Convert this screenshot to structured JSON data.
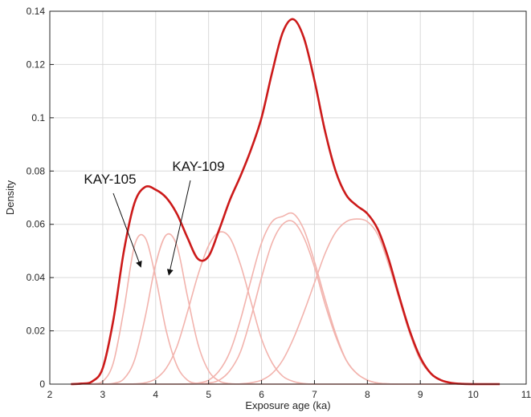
{
  "chart_data": {
    "type": "line",
    "title": "",
    "xlabel": "Exposure age (ka)",
    "ylabel": "Density",
    "xlim": [
      2,
      11
    ],
    "ylim": [
      0,
      0.14
    ],
    "xticks": [
      "2",
      "3",
      "4",
      "5",
      "6",
      "7",
      "8",
      "9",
      "10",
      "11"
    ],
    "yticks": [
      "0",
      "0.02",
      "0.04",
      "0.06",
      "0.08",
      "0.1",
      "0.12",
      "0.14"
    ],
    "grid": true,
    "colors": {
      "summary": "#cc1a1a",
      "individual": "#f2b3ad",
      "axis": "#262626",
      "grid": "#d9d9d9"
    },
    "x": [
      2.4,
      2.6,
      2.8,
      3.0,
      3.2,
      3.4,
      3.6,
      3.8,
      4.0,
      4.2,
      4.4,
      4.6,
      4.8,
      5.0,
      5.2,
      5.4,
      5.6,
      5.8,
      6.0,
      6.2,
      6.4,
      6.6,
      6.8,
      7.0,
      7.2,
      7.4,
      7.6,
      7.8,
      8.0,
      8.2,
      8.4,
      8.6,
      8.8,
      9.0,
      9.2,
      9.4,
      9.6,
      9.8,
      10.0,
      10.2,
      10.5
    ],
    "series": [
      {
        "role": "summary",
        "values": [
          0.0,
          0.0002,
          0.001,
          0.006,
          0.024,
          0.05,
          0.068,
          0.074,
          0.073,
          0.07,
          0.064,
          0.055,
          0.047,
          0.048,
          0.058,
          0.069,
          0.078,
          0.088,
          0.1,
          0.117,
          0.132,
          0.137,
          0.13,
          0.114,
          0.095,
          0.08,
          0.071,
          0.067,
          0.064,
          0.058,
          0.047,
          0.033,
          0.02,
          0.01,
          0.004,
          0.0014,
          0.0004,
          0.0001,
          0.0,
          0.0,
          0.0
        ]
      },
      {
        "role": "individual",
        "label": "KAY-105",
        "values": [
          0.0,
          0.0,
          0.0001,
          0.001,
          0.008,
          0.028,
          0.052,
          0.055,
          0.04,
          0.02,
          0.007,
          0.0015,
          0.0002,
          0.0,
          0.0,
          0.0,
          0.0,
          0.0,
          0.0,
          0.0,
          0.0,
          0.0,
          0.0,
          0.0,
          0.0,
          0.0,
          0.0,
          0.0,
          0.0,
          0.0,
          0.0,
          0.0,
          0.0,
          0.0,
          0.0,
          0.0,
          0.0,
          0.0,
          0.0,
          0.0,
          0.0
        ]
      },
      {
        "role": "individual",
        "label": "KAY-109",
        "values": [
          0.0,
          0.0,
          0.0,
          0.0,
          0.0003,
          0.002,
          0.009,
          0.025,
          0.045,
          0.056,
          0.052,
          0.033,
          0.015,
          0.005,
          0.0012,
          0.0002,
          0.0,
          0.0,
          0.0,
          0.0,
          0.0,
          0.0,
          0.0,
          0.0,
          0.0,
          0.0,
          0.0,
          0.0,
          0.0,
          0.0,
          0.0,
          0.0,
          0.0,
          0.0,
          0.0,
          0.0,
          0.0,
          0.0,
          0.0,
          0.0,
          0.0
        ]
      },
      {
        "role": "individual",
        "values": [
          0.0,
          0.0,
          0.0,
          0.0,
          0.0,
          0.0,
          0.0001,
          0.0005,
          0.002,
          0.006,
          0.014,
          0.027,
          0.041,
          0.052,
          0.057,
          0.055,
          0.045,
          0.031,
          0.017,
          0.008,
          0.003,
          0.001,
          0.0002,
          0.0,
          0.0,
          0.0,
          0.0,
          0.0,
          0.0,
          0.0,
          0.0,
          0.0,
          0.0,
          0.0,
          0.0,
          0.0,
          0.0,
          0.0,
          0.0,
          0.0,
          0.0
        ]
      },
      {
        "role": "individual",
        "values": [
          0.0,
          0.0,
          0.0,
          0.0,
          0.0,
          0.0,
          0.0,
          0.0,
          0.0,
          0.0,
          0.0,
          0.0001,
          0.0004,
          0.0015,
          0.005,
          0.012,
          0.024,
          0.039,
          0.053,
          0.061,
          0.063,
          0.064,
          0.058,
          0.046,
          0.032,
          0.019,
          0.009,
          0.004,
          0.0015,
          0.0004,
          0.0001,
          0.0,
          0.0,
          0.0,
          0.0,
          0.0,
          0.0,
          0.0,
          0.0,
          0.0,
          0.0
        ]
      },
      {
        "role": "individual",
        "values": [
          0.0,
          0.0,
          0.0,
          0.0,
          0.0,
          0.0,
          0.0,
          0.0,
          0.0,
          0.0,
          0.0,
          0.0,
          0.0001,
          0.0004,
          0.0015,
          0.005,
          0.012,
          0.025,
          0.04,
          0.053,
          0.06,
          0.061,
          0.055,
          0.044,
          0.03,
          0.018,
          0.009,
          0.004,
          0.0015,
          0.0004,
          0.0001,
          0.0,
          0.0,
          0.0,
          0.0,
          0.0,
          0.0,
          0.0,
          0.0,
          0.0,
          0.0
        ]
      },
      {
        "role": "individual",
        "values": [
          0.0,
          0.0,
          0.0,
          0.0,
          0.0,
          0.0,
          0.0,
          0.0,
          0.0,
          0.0,
          0.0,
          0.0,
          0.0,
          0.0,
          0.0,
          0.0,
          0.0001,
          0.0005,
          0.0015,
          0.004,
          0.009,
          0.017,
          0.027,
          0.038,
          0.049,
          0.057,
          0.061,
          0.062,
          0.061,
          0.056,
          0.045,
          0.032,
          0.019,
          0.009,
          0.004,
          0.0015,
          0.0005,
          0.0001,
          0.0,
          0.0,
          0.0
        ]
      }
    ],
    "annotations": [
      {
        "text": "KAY-105",
        "arrow_to": [
          3.72,
          0.044
        ]
      },
      {
        "text": "KAY-109",
        "arrow_to": [
          4.25,
          0.041
        ]
      }
    ]
  }
}
